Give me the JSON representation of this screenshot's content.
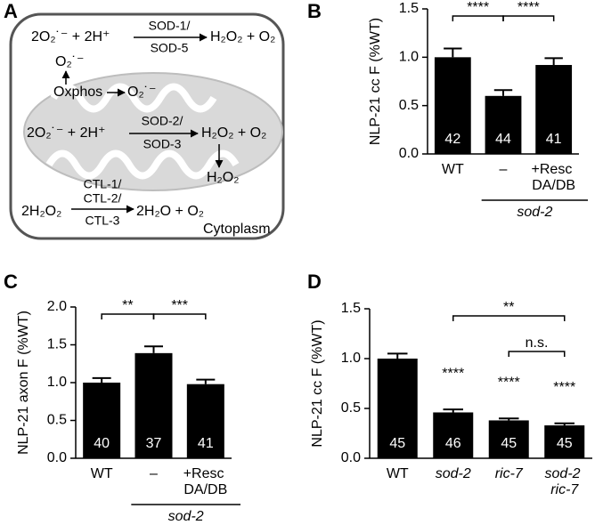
{
  "diagram": {
    "panel": "A",
    "sod_cyto": {
      "reactants": "2O₂˙⁻ + 2H⁺",
      "enzyme_top": "SOD-1/",
      "enzyme_bottom": "SOD-5",
      "products": "H₂O₂ + O₂"
    },
    "oxphos": {
      "source": "Oxphos",
      "product": "O₂˙⁻",
      "escaped": "O₂˙⁻"
    },
    "sod_mito": {
      "reactants": "2O₂˙⁻ + 2H⁺",
      "enzyme_top": "SOD-2/",
      "enzyme_bottom": "SOD-3",
      "products": "H₂O₂ + O₂",
      "diffused": "H₂O₂"
    },
    "catalase": {
      "reactants": "2H₂O₂",
      "enzyme_lines": [
        "CTL-1/",
        "CTL-2/",
        "CTL-3"
      ],
      "products": "2H₂O + O₂"
    },
    "compartment": "Cytoplasm"
  },
  "chart_data": [
    {
      "type": "bar",
      "panel": "B",
      "ylabel": "NLP-21 cc F (%WT)",
      "color": "#000000",
      "categories": [
        "WT",
        "–",
        "+Resc DA/DB"
      ],
      "italic_categories": [
        false,
        false,
        false
      ],
      "values": [
        1.0,
        0.6,
        0.92
      ],
      "errors": [
        0.09,
        0.06,
        0.07
      ],
      "n": [
        42,
        44,
        41
      ],
      "ylim": [
        0,
        1.5
      ],
      "yticks": [
        {
          "value": 0,
          "label": "0.0"
        },
        {
          "value": 0.5,
          "label": "0.5"
        },
        {
          "value": 1,
          "label": "1.0"
        },
        {
          "value": 1.5,
          "label": "1.5"
        }
      ],
      "brackets": [
        {
          "label": "****",
          "categories": [
            "WT",
            "–"
          ]
        },
        {
          "label": "****",
          "categories": [
            "–",
            "+Resc DA/DB"
          ]
        }
      ],
      "group": {
        "label": "sod-2",
        "categories": [
          "–",
          "+Resc DA/DB"
        ]
      }
    },
    {
      "type": "bar",
      "panel": "C",
      "ylabel": "NLP-21 axon F (%WT)",
      "color": "#000000",
      "categories": [
        "WT",
        "–",
        "+Resc DA/DB"
      ],
      "italic_categories": [
        false,
        false,
        false
      ],
      "values": [
        1.0,
        1.39,
        0.98
      ],
      "errors": [
        0.06,
        0.09,
        0.06
      ],
      "n": [
        40,
        37,
        41
      ],
      "ylim": [
        0,
        2
      ],
      "yticks": [
        {
          "value": 0,
          "label": "0.0"
        },
        {
          "value": 0.5,
          "label": "0.5"
        },
        {
          "value": 1,
          "label": "1.0"
        },
        {
          "value": 1.5,
          "label": "1.5"
        },
        {
          "value": 2,
          "label": "2.0"
        }
      ],
      "brackets": [
        {
          "label": "**",
          "categories": [
            "WT",
            "–"
          ]
        },
        {
          "label": "***",
          "categories": [
            "–",
            "+Resc DA/DB"
          ]
        }
      ],
      "group": {
        "label": "sod-2",
        "categories": [
          "–",
          "+Resc DA/DB"
        ]
      }
    },
    {
      "type": "bar",
      "panel": "D",
      "ylabel": "NLP-21 cc F (%WT)",
      "color": "#000000",
      "categories": [
        "WT",
        "sod-2",
        "ric-7",
        "sod-2 ric-7"
      ],
      "italic_categories": [
        false,
        true,
        true,
        true
      ],
      "values": [
        1.0,
        0.46,
        0.38,
        0.33
      ],
      "errors": [
        0.05,
        0.03,
        0.02,
        0.02
      ],
      "n": [
        45,
        46,
        45,
        45
      ],
      "bar_annotations": [
        null,
        "****",
        "****",
        "****"
      ],
      "ylim": [
        0,
        1.5
      ],
      "yticks": [
        {
          "value": 0,
          "label": "0.0"
        },
        {
          "value": 0.5,
          "label": "0.5"
        },
        {
          "value": 1,
          "label": "1.0"
        },
        {
          "value": 1.5,
          "label": "1.5"
        }
      ],
      "brackets": [
        {
          "label": "**",
          "categories": [
            "sod-2",
            "sod-2 ric-7"
          ]
        },
        {
          "label": "n.s.",
          "categories": [
            "ric-7",
            "sod-2 ric-7"
          ]
        }
      ]
    }
  ]
}
